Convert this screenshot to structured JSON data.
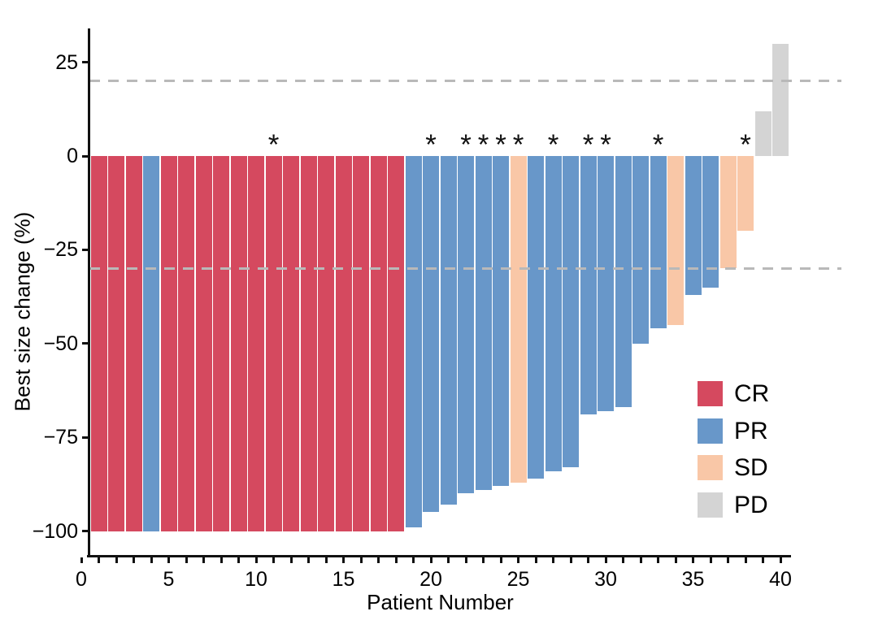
{
  "chart_data": {
    "type": "bar",
    "title": "",
    "xlabel": "Patient Number",
    "ylabel": "Best size change (%)",
    "x_ticks": [
      0,
      5,
      10,
      15,
      20,
      25,
      30,
      35,
      40
    ],
    "x_minor_tick_step": 1,
    "y_ticks": [
      25,
      0,
      -25,
      -50,
      -75,
      -100
    ],
    "xlim": [
      -0.5,
      40.6
    ],
    "ylim": [
      -106,
      34
    ],
    "grid": "off",
    "reference_lines_dashed": [
      20,
      -30
    ],
    "annotation_symbol": "*",
    "annotated_patients": [
      11,
      20,
      22,
      23,
      24,
      25,
      27,
      29,
      30,
      33,
      38
    ],
    "legend": {
      "position": "inside-right",
      "entries": [
        {
          "label": "CR",
          "color": "#d5495f"
        },
        {
          "label": "PR",
          "color": "#6897c9"
        },
        {
          "label": "SD",
          "color": "#f9c7a7"
        },
        {
          "label": "PD",
          "color": "#d4d4d4"
        }
      ]
    },
    "patients": [
      {
        "patient": 1,
        "value": -100,
        "response": "CR",
        "starred": false
      },
      {
        "patient": 2,
        "value": -100,
        "response": "CR",
        "starred": false
      },
      {
        "patient": 3,
        "value": -100,
        "response": "CR",
        "starred": false
      },
      {
        "patient": 4,
        "value": -100,
        "response": "PR",
        "starred": false
      },
      {
        "patient": 5,
        "value": -100,
        "response": "CR",
        "starred": false
      },
      {
        "patient": 6,
        "value": -100,
        "response": "CR",
        "starred": false
      },
      {
        "patient": 7,
        "value": -100,
        "response": "CR",
        "starred": false
      },
      {
        "patient": 8,
        "value": -100,
        "response": "CR",
        "starred": false
      },
      {
        "patient": 9,
        "value": -100,
        "response": "CR",
        "starred": false
      },
      {
        "patient": 10,
        "value": -100,
        "response": "CR",
        "starred": false
      },
      {
        "patient": 11,
        "value": -100,
        "response": "CR",
        "starred": true
      },
      {
        "patient": 12,
        "value": -100,
        "response": "CR",
        "starred": false
      },
      {
        "patient": 13,
        "value": -100,
        "response": "CR",
        "starred": false
      },
      {
        "patient": 14,
        "value": -100,
        "response": "CR",
        "starred": false
      },
      {
        "patient": 15,
        "value": -100,
        "response": "CR",
        "starred": false
      },
      {
        "patient": 16,
        "value": -100,
        "response": "CR",
        "starred": false
      },
      {
        "patient": 17,
        "value": -100,
        "response": "CR",
        "starred": false
      },
      {
        "patient": 18,
        "value": -100,
        "response": "CR",
        "starred": false
      },
      {
        "patient": 19,
        "value": -99,
        "response": "PR",
        "starred": false
      },
      {
        "patient": 20,
        "value": -95,
        "response": "PR",
        "starred": true
      },
      {
        "patient": 21,
        "value": -93,
        "response": "PR",
        "starred": false
      },
      {
        "patient": 22,
        "value": -90,
        "response": "PR",
        "starred": true
      },
      {
        "patient": 23,
        "value": -89,
        "response": "PR",
        "starred": true
      },
      {
        "patient": 24,
        "value": -88,
        "response": "PR",
        "starred": true
      },
      {
        "patient": 25,
        "value": -87,
        "response": "SD",
        "starred": true
      },
      {
        "patient": 26,
        "value": -86,
        "response": "PR",
        "starred": false
      },
      {
        "patient": 27,
        "value": -84,
        "response": "PR",
        "starred": true
      },
      {
        "patient": 28,
        "value": -83,
        "response": "PR",
        "starred": false
      },
      {
        "patient": 29,
        "value": -69,
        "response": "PR",
        "starred": true
      },
      {
        "patient": 30,
        "value": -68,
        "response": "PR",
        "starred": true
      },
      {
        "patient": 31,
        "value": -67,
        "response": "PR",
        "starred": false
      },
      {
        "patient": 32,
        "value": -50,
        "response": "PR",
        "starred": false
      },
      {
        "patient": 33,
        "value": -46,
        "response": "PR",
        "starred": true
      },
      {
        "patient": 34,
        "value": -45,
        "response": "SD",
        "starred": false
      },
      {
        "patient": 35,
        "value": -37,
        "response": "PR",
        "starred": false
      },
      {
        "patient": 36,
        "value": -35,
        "response": "PR",
        "starred": false
      },
      {
        "patient": 37,
        "value": -30,
        "response": "SD",
        "starred": false
      },
      {
        "patient": 38,
        "value": -20,
        "response": "SD",
        "starred": true
      },
      {
        "patient": 39,
        "value": 12,
        "response": "PD",
        "starred": false
      },
      {
        "patient": 40,
        "value": 30,
        "response": "PD",
        "starred": false
      }
    ]
  },
  "style_colors": {
    "axis": "#111111",
    "dashed_reference": "#b9b9b9",
    "background": "#ffffff"
  }
}
